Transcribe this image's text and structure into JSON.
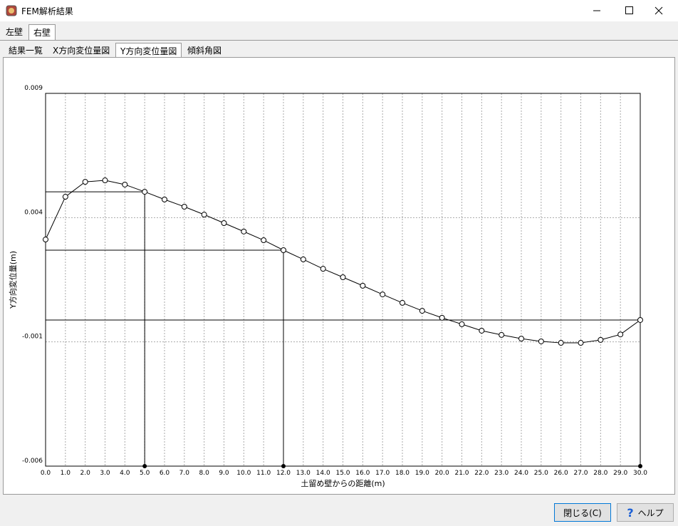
{
  "window": {
    "title": "FEM解析結果"
  },
  "tabs": [
    "左壁",
    "右壁"
  ],
  "selected_tab": 1,
  "subtabs": [
    "結果一覧",
    "X方向変位量図",
    "Y方向変位量図",
    "傾斜角図"
  ],
  "selected_subtab": 2,
  "buttons": {
    "close": "閉じる(C)",
    "help": "ヘルプ"
  },
  "chart_data": {
    "type": "line",
    "x_label": "土留め壁からの距離(m)",
    "y_label": "Y方向変位量(m)",
    "x": [
      0,
      1,
      2,
      3,
      4,
      5,
      6,
      7,
      8,
      9,
      10,
      11,
      12,
      13,
      14,
      15,
      16,
      17,
      18,
      19,
      20,
      21,
      22,
      23,
      24,
      25,
      26,
      27,
      28,
      29,
      30
    ],
    "series": [
      {
        "color": "#000000",
        "values": [
          0.00312,
          0.00484,
          0.00544,
          0.0055,
          0.00533,
          0.00504,
          0.00473,
          0.00444,
          0.00412,
          0.00378,
          0.00344,
          0.00309,
          0.00269,
          0.00232,
          0.00194,
          0.0016,
          0.00126,
          0.00091,
          0.00057,
          0.00025,
          -3e-05,
          -0.00029,
          -0.00055,
          -0.00072,
          -0.00087,
          -0.00098,
          -0.00104,
          -0.00104,
          -0.00092,
          -0.0007,
          -0.00012
        ]
      }
    ],
    "highlight_x": [
      5,
      12,
      30
    ],
    "xlim": [
      0,
      30
    ],
    "xticks": [
      {
        "value": 0,
        "label": "0.0"
      },
      {
        "value": 1,
        "label": "1.0"
      },
      {
        "value": 2,
        "label": "2.0"
      },
      {
        "value": 3,
        "label": "3.0"
      },
      {
        "value": 4,
        "label": "4.0"
      },
      {
        "value": 5,
        "label": "5.0"
      },
      {
        "value": 6,
        "label": "6.0"
      },
      {
        "value": 7,
        "label": "7.0"
      },
      {
        "value": 8,
        "label": "8.0"
      },
      {
        "value": 9,
        "label": "9.0"
      },
      {
        "value": 10,
        "label": "10.0"
      },
      {
        "value": 11,
        "label": "11.0"
      },
      {
        "value": 12,
        "label": "12.0"
      },
      {
        "value": 13,
        "label": "13.0"
      },
      {
        "value": 14,
        "label": "14.0"
      },
      {
        "value": 15,
        "label": "15.0"
      },
      {
        "value": 16,
        "label": "16.0"
      },
      {
        "value": 17,
        "label": "17.0"
      },
      {
        "value": 18,
        "label": "18.0"
      },
      {
        "value": 19,
        "label": "19.0"
      },
      {
        "value": 20,
        "label": "20.0"
      },
      {
        "value": 21,
        "label": "21.0"
      },
      {
        "value": 22,
        "label": "22.0"
      },
      {
        "value": 23,
        "label": "23.0"
      },
      {
        "value": 24,
        "label": "24.0"
      },
      {
        "value": 25,
        "label": "25.0"
      },
      {
        "value": 26,
        "label": "26.0"
      },
      {
        "value": 27,
        "label": "27.0"
      },
      {
        "value": 28,
        "label": "28.0"
      },
      {
        "value": 29,
        "label": "29.0"
      },
      {
        "value": 30,
        "label": "30.0"
      }
    ],
    "ylim": [
      -0.006,
      0.009
    ],
    "yticks": [
      -0.006,
      -0.001,
      0.004,
      0.009
    ],
    "grid": true
  }
}
